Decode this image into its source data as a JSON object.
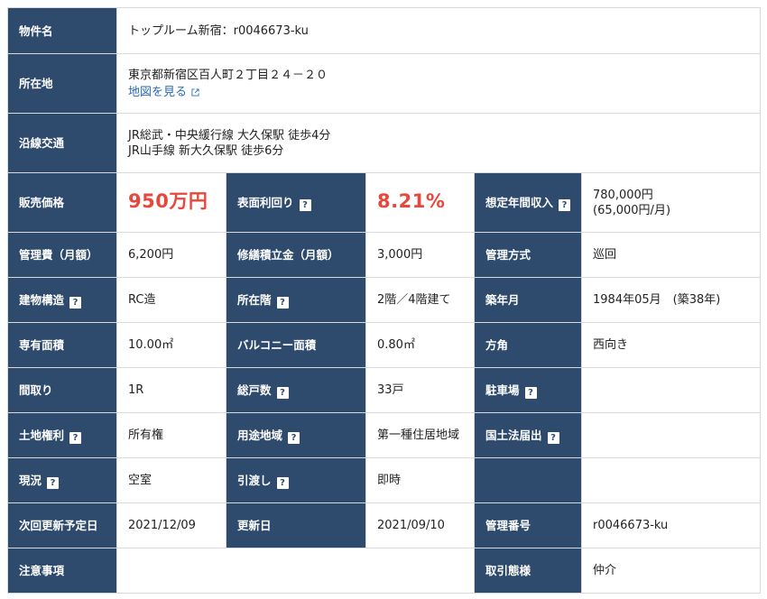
{
  "property_name": {
    "label": "物件名",
    "value": "トップルーム新宿：r0046673-ku"
  },
  "address": {
    "label": "所在地",
    "value": "東京都新宿区百人町２丁目２４－２０",
    "map_link": "地図を見る"
  },
  "transit": {
    "label": "沿線交通",
    "lines": [
      "JR総武・中央緩行線 大久保駅 徒歩4分",
      "JR山手線 新大久保駅 徒歩6分"
    ]
  },
  "price": {
    "label": "販売価格",
    "value": "950万円"
  },
  "yield": {
    "label": "表面利回り",
    "value": "8.21%"
  },
  "annual_income": {
    "label": "想定年間収入",
    "value": "780,000円",
    "monthly": "(65,000円/月)"
  },
  "management_fee": {
    "label": "管理費（月額）",
    "value": "6,200円"
  },
  "repair_reserve": {
    "label": "修繕積立金（月額）",
    "value": "3,000円"
  },
  "management_method": {
    "label": "管理方式",
    "value": "巡回"
  },
  "structure": {
    "label": "建物構造",
    "value": "RC造"
  },
  "floor": {
    "label": "所在階",
    "value": "2階／4階建て"
  },
  "built": {
    "label": "築年月",
    "value": "1984年05月　(築38年)"
  },
  "area": {
    "label": "専有面積",
    "value": "10.00㎡"
  },
  "balcony": {
    "label": "バルコニー面積",
    "value": "0.80㎡"
  },
  "direction": {
    "label": "方角",
    "value": "西向き"
  },
  "layout": {
    "label": "間取り",
    "value": "1R"
  },
  "total_units": {
    "label": "総戸数",
    "value": "33戸"
  },
  "parking": {
    "label": "駐車場",
    "value": ""
  },
  "land_rights": {
    "label": "土地権利",
    "value": "所有権"
  },
  "zoning": {
    "label": "用途地域",
    "value": "第一種住居地域"
  },
  "land_act": {
    "label": "国土法届出",
    "value": ""
  },
  "status": {
    "label": "現況",
    "value": "空室"
  },
  "handover": {
    "label": "引渡し",
    "value": "即時"
  },
  "next_update": {
    "label": "次回更新予定日",
    "value": "2021/12/09"
  },
  "updated": {
    "label": "更新日",
    "value": "2021/09/10"
  },
  "manage_no": {
    "label": "管理番号",
    "value": "r0046673-ku"
  },
  "notes": {
    "label": "注意事項",
    "value": ""
  },
  "transaction": {
    "label": "取引態様",
    "value": "仲介"
  },
  "help_glyph": "?",
  "icons": {
    "help": "question-icon",
    "external": "external-link-icon"
  }
}
